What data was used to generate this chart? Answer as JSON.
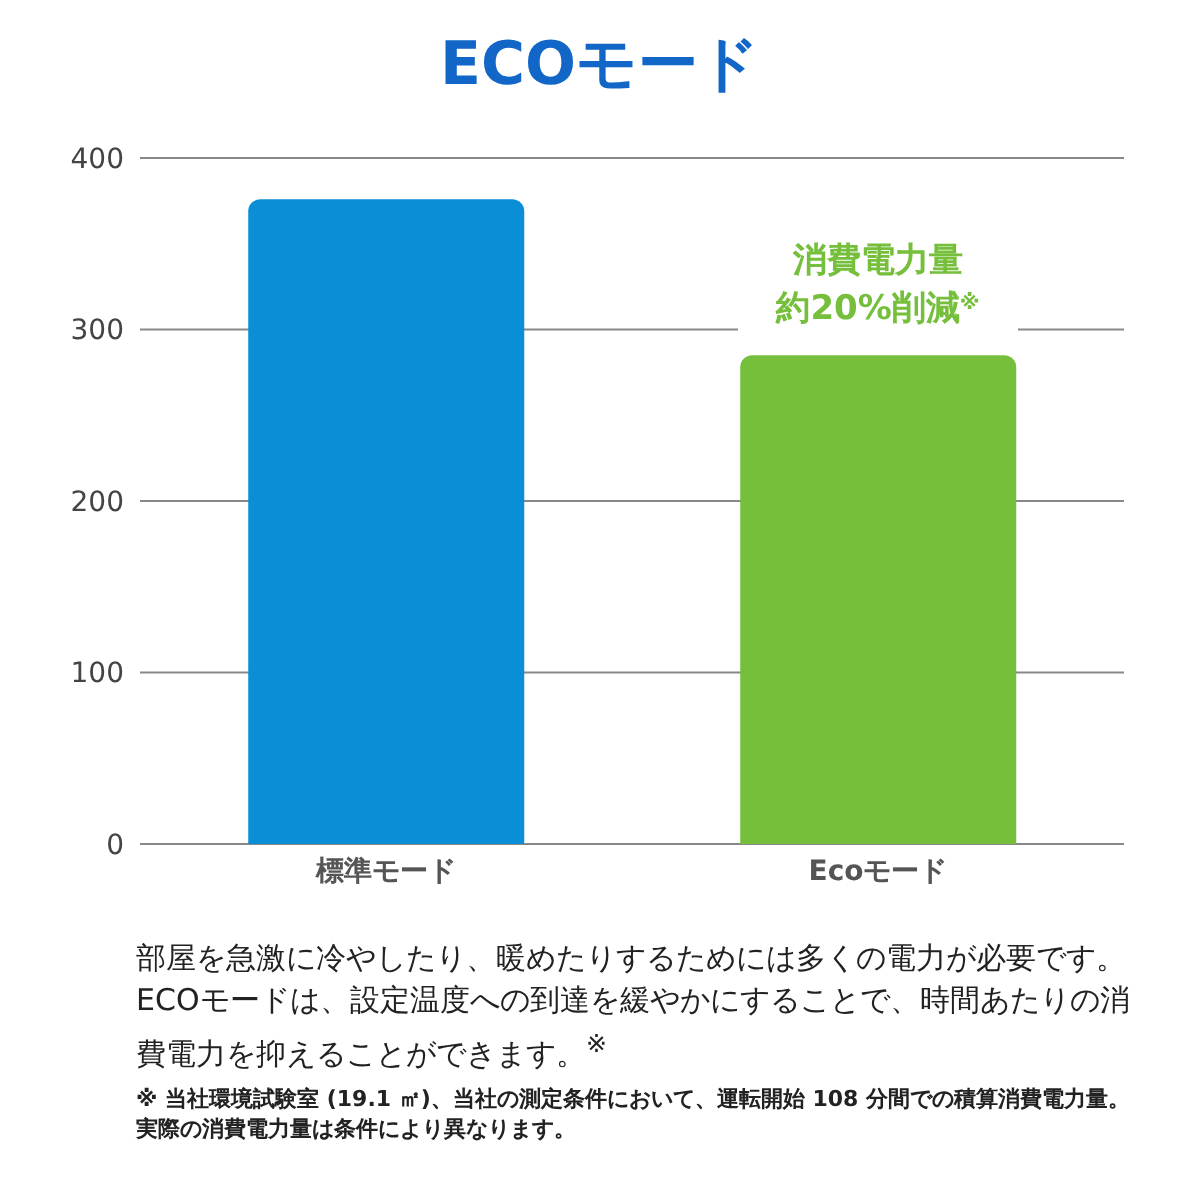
{
  "chart_data": {
    "type": "bar",
    "title": "ECOモード",
    "categories": [
      "標準モード",
      "Ecoモード"
    ],
    "values": [
      376,
      285
    ],
    "colors": [
      "#0a8ed6",
      "#76bf3c"
    ],
    "ylim": [
      0,
      400
    ],
    "yticks": [
      0,
      100,
      200,
      300,
      400
    ],
    "grid": "y",
    "annotations": [
      {
        "text": "消費電力量",
        "x": "Ecoモード",
        "y": 285
      },
      {
        "text": "約20%削減$^{※}$",
        "x": "Ecoモード",
        "y": 285
      },
      "部屋を急激に冷やしたり、暖めたりするためには多くの電力が必要です。ECOモードは、設定温度への到達を緩やかにすることで、時間あたりの消費電力を抑えることができます。$^{※}$",
      "※ 当社環境試験室 (19.1 ㎡)、当社の測定条件において、運転開始 108 分間での積算消費電力量。実際の消費電力量は条件により異なります。"
    ]
  }
}
